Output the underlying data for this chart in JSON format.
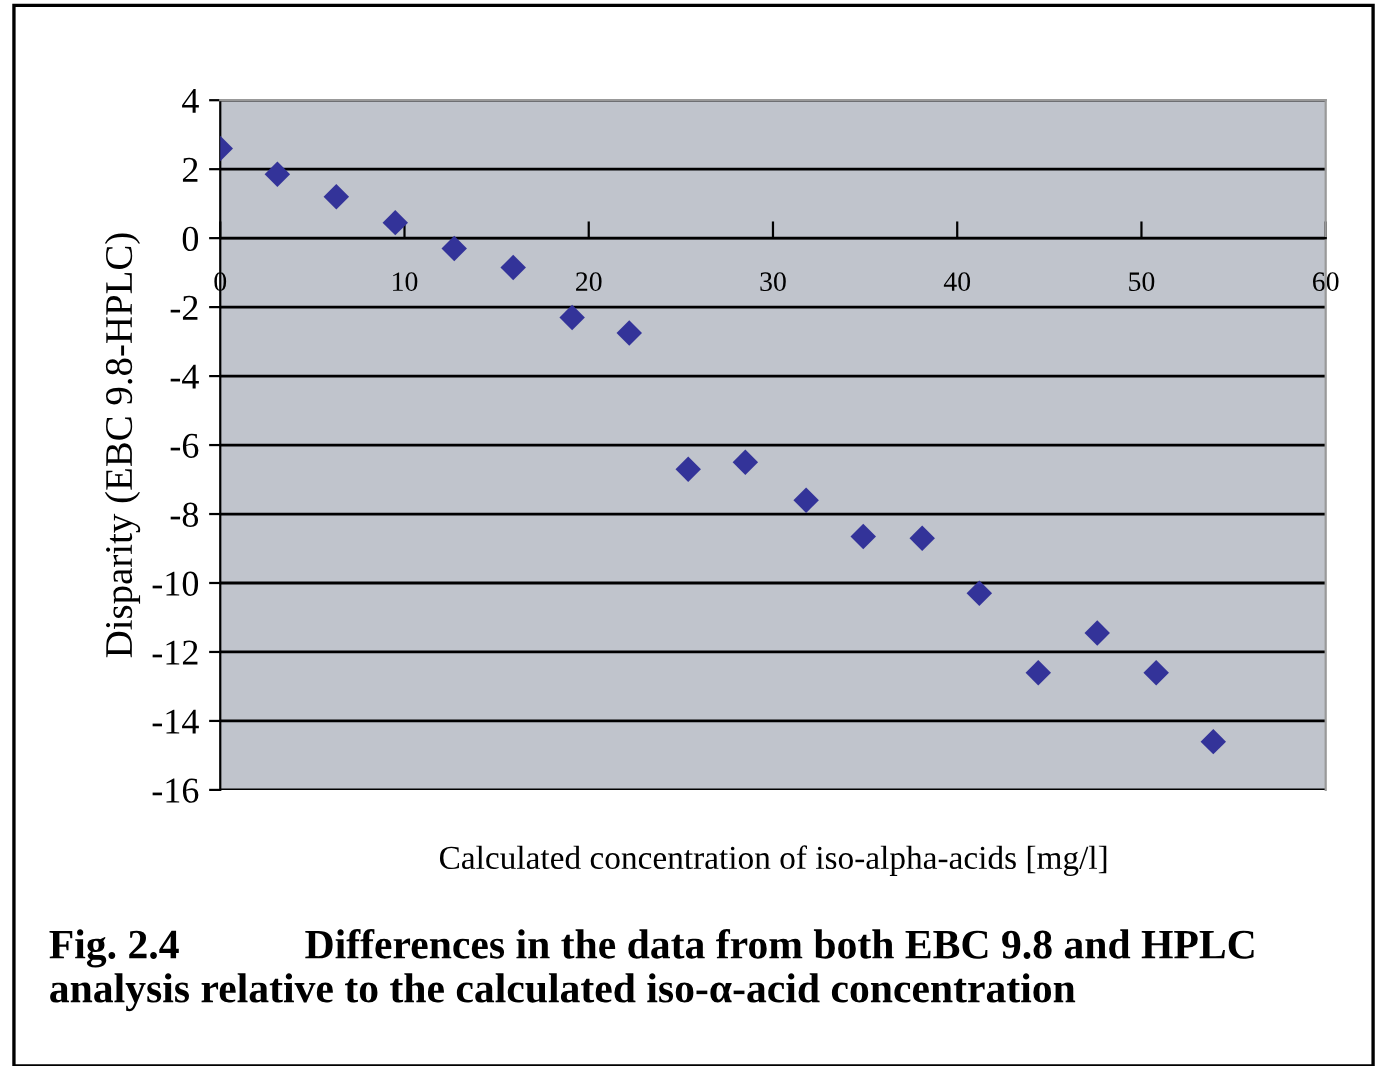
{
  "chart_data": {
    "type": "scatter",
    "xlabel": "Calculated concentration of iso-alpha-acids [mg/l]",
    "ylabel": "Disparity (EBC 9.8-HPLC)",
    "x": [
      0,
      3.1,
      6.3,
      9.5,
      12.7,
      15.9,
      19.1,
      22.2,
      25.4,
      28.5,
      31.8,
      34.9,
      38.1,
      41.2,
      44.4,
      47.6,
      50.8,
      53.9
    ],
    "series": [
      {
        "color": "#333399",
        "values": [
          2.6,
          1.85,
          1.2,
          0.45,
          -0.3,
          -0.85,
          -2.3,
          -2.75,
          -6.7,
          -6.5,
          -7.6,
          -8.65,
          -8.7,
          -10.3,
          -12.6,
          -11.45,
          -12.6,
          -14.6
        ]
      }
    ],
    "marker": "diamond",
    "grid": "y",
    "xlim": [
      0,
      60
    ],
    "xticks": [
      0,
      10,
      20,
      30,
      40,
      50,
      60
    ],
    "ylim": [
      -16,
      4
    ],
    "yticks": [
      -16,
      -14,
      -12,
      -10,
      -8,
      -6,
      -4,
      -2,
      0,
      2,
      4
    ],
    "annotations": [
      "Fig. 2.4   Differences in the data from both EBC 9.8 and HPLC analysis relative to the calculated iso-α-acid concentration"
    ]
  }
}
